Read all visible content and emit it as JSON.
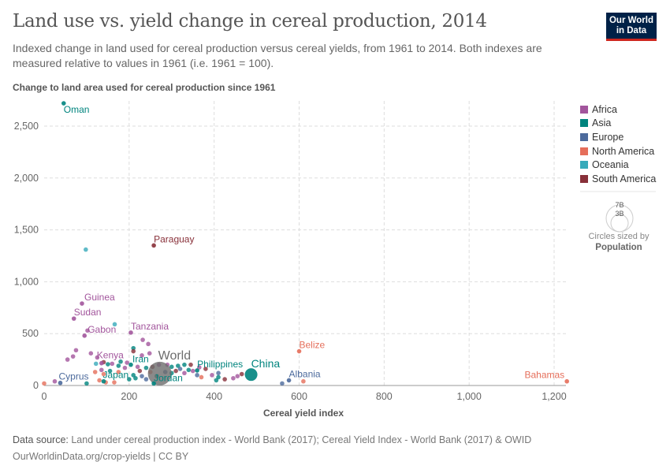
{
  "title": "Land use vs. yield change in cereal production, 2014",
  "subtitle": "Indexed change in land used for cereal production versus cereal yields, from 1961 to 2014. Both indexes are measured relative to values in 1961 (i.e. 1961 = 100).",
  "logo": "Our World in Data",
  "footer": {
    "source_label": "Data source:",
    "source": "Land under cereal production index - World Bank (2017); Cereal Yield Index - World Bank (2017) & OWID",
    "url": "OurWorldinData.org/crop-yields | CC BY"
  },
  "size_legend": {
    "big": "7B",
    "small": "3B",
    "caption": "Circles sized by",
    "variable": "Population"
  },
  "chart_data": {
    "type": "scatter",
    "title": "Land use vs. yield change in cereal production, 2014",
    "xlabel": "Cereal yield index",
    "ylabel": "Change to land area used for cereal production since 1961",
    "xlim": [
      0,
      1230
    ],
    "ylim": [
      0,
      2750
    ],
    "xticks": [
      "0",
      "200",
      "400",
      "600",
      "800",
      "1,000",
      "1,200"
    ],
    "xtick_values": [
      0,
      200,
      400,
      600,
      800,
      1000,
      1200
    ],
    "yticks": [
      "0",
      "500",
      "1,000",
      "1,500",
      "2,000",
      "2,500"
    ],
    "ytick_values": [
      0,
      500,
      1000,
      1500,
      2000,
      2500
    ],
    "grid": true,
    "legend_placement": "right",
    "legend": [
      {
        "name": "Africa",
        "color": "#a2559c"
      },
      {
        "name": "Asia",
        "color": "#00847e"
      },
      {
        "name": "Europe",
        "color": "#4c6a9c"
      },
      {
        "name": "North America",
        "color": "#e56e5a"
      },
      {
        "name": "Oceania",
        "color": "#38aaba"
      },
      {
        "name": "South America",
        "color": "#883039"
      }
    ],
    "world_color": "#6d6d6d",
    "labeled": [
      {
        "name": "Oman",
        "x": 46,
        "y": 2720,
        "region": "Asia"
      },
      {
        "name": "Paraguay",
        "x": 258,
        "y": 1350,
        "region": "South America"
      },
      {
        "name": "Guinea",
        "x": 89,
        "y": 790,
        "region": "Africa"
      },
      {
        "name": "Sudan",
        "x": 70,
        "y": 645,
        "region": "Africa"
      },
      {
        "name": "Gabon",
        "x": 95,
        "y": 480,
        "region": "Africa"
      },
      {
        "name": "Tanzania",
        "x": 204,
        "y": 510,
        "region": "Africa"
      },
      {
        "name": "Kenya",
        "x": 135,
        "y": 215,
        "region": "Africa"
      },
      {
        "name": "Iran",
        "x": 204,
        "y": 200,
        "region": "Asia"
      },
      {
        "name": "World",
        "x": 272,
        "y": 115,
        "region": "World"
      },
      {
        "name": "China",
        "x": 487,
        "y": 105,
        "region": "Asia"
      },
      {
        "name": "Philippines",
        "x": 360,
        "y": 145,
        "region": "Asia"
      },
      {
        "name": "Jordan",
        "x": 258,
        "y": 20,
        "region": "Asia"
      },
      {
        "name": "Japan",
        "x": 140,
        "y": 40,
        "region": "Asia"
      },
      {
        "name": "Cyprus",
        "x": 38,
        "y": 25,
        "region": "Europe"
      },
      {
        "name": "Albania",
        "x": 576,
        "y": 50,
        "region": "Europe"
      },
      {
        "name": "Belize",
        "x": 600,
        "y": 330,
        "region": "North America"
      },
      {
        "name": "Bahamas",
        "x": 1230,
        "y": 40,
        "region": "North America"
      }
    ],
    "points": [
      [
        98,
        1310,
        "Oceania"
      ],
      [
        166,
        590,
        "Oceania"
      ],
      [
        102,
        530,
        "Africa"
      ],
      [
        232,
        440,
        "Africa"
      ],
      [
        245,
        400,
        "Africa"
      ],
      [
        75,
        340,
        "Africa"
      ],
      [
        55,
        250,
        "Africa"
      ],
      [
        68,
        280,
        "Africa"
      ],
      [
        110,
        310,
        "Africa"
      ],
      [
        125,
        270,
        "Africa"
      ],
      [
        210,
        360,
        "Asia"
      ],
      [
        210,
        330,
        "South America"
      ],
      [
        230,
        290,
        "Africa"
      ],
      [
        248,
        310,
        "Africa"
      ],
      [
        180,
        230,
        "Asia"
      ],
      [
        195,
        220,
        "Africa"
      ],
      [
        140,
        225,
        "South America"
      ],
      [
        160,
        210,
        "Africa"
      ],
      [
        122,
        210,
        "Oceania"
      ],
      [
        150,
        205,
        "Asia"
      ],
      [
        175,
        190,
        "Asia"
      ],
      [
        220,
        180,
        "Africa"
      ],
      [
        240,
        170,
        "Asia"
      ],
      [
        255,
        180,
        "South America"
      ],
      [
        290,
        200,
        "Africa"
      ],
      [
        300,
        180,
        "Asia"
      ],
      [
        315,
        190,
        "Asia"
      ],
      [
        330,
        200,
        "Asia"
      ],
      [
        345,
        200,
        "South America"
      ],
      [
        320,
        160,
        "Europe"
      ],
      [
        340,
        150,
        "Asia"
      ],
      [
        310,
        140,
        "South America"
      ],
      [
        300,
        120,
        "Asia"
      ],
      [
        285,
        130,
        "Europe"
      ],
      [
        330,
        120,
        "Africa"
      ],
      [
        350,
        140,
        "Africa"
      ],
      [
        360,
        100,
        "Europe"
      ],
      [
        370,
        80,
        "North America"
      ],
      [
        395,
        100,
        "Africa"
      ],
      [
        410,
        120,
        "Europe"
      ],
      [
        410,
        80,
        "Asia"
      ],
      [
        425,
        60,
        "South America"
      ],
      [
        445,
        70,
        "Africa"
      ],
      [
        455,
        90,
        "Africa"
      ],
      [
        465,
        110,
        "South America"
      ],
      [
        405,
        50,
        "Asia"
      ],
      [
        230,
        90,
        "Europe"
      ],
      [
        240,
        60,
        "Europe"
      ],
      [
        265,
        90,
        "Asia"
      ],
      [
        215,
        70,
        "Asia"
      ],
      [
        200,
        60,
        "Asia"
      ],
      [
        175,
        130,
        "North America"
      ],
      [
        155,
        140,
        "Asia"
      ],
      [
        120,
        130,
        "North America"
      ],
      [
        135,
        150,
        "Africa"
      ],
      [
        140,
        110,
        "North America"
      ],
      [
        130,
        50,
        "North America"
      ],
      [
        145,
        30,
        "North America"
      ],
      [
        165,
        30,
        "North America"
      ],
      [
        100,
        20,
        "Asia"
      ],
      [
        25,
        40,
        "Africa"
      ],
      [
        0,
        20,
        "North America"
      ],
      [
        210,
        100,
        "Asia"
      ],
      [
        225,
        140,
        "South America"
      ],
      [
        270,
        200,
        "Africa"
      ],
      [
        560,
        20,
        "Europe"
      ],
      [
        610,
        40,
        "North America"
      ],
      [
        380,
        160,
        "South America"
      ],
      [
        365,
        175,
        "Africa"
      ],
      [
        190,
        170,
        "Africa"
      ],
      [
        250,
        130,
        "North America"
      ]
    ]
  }
}
